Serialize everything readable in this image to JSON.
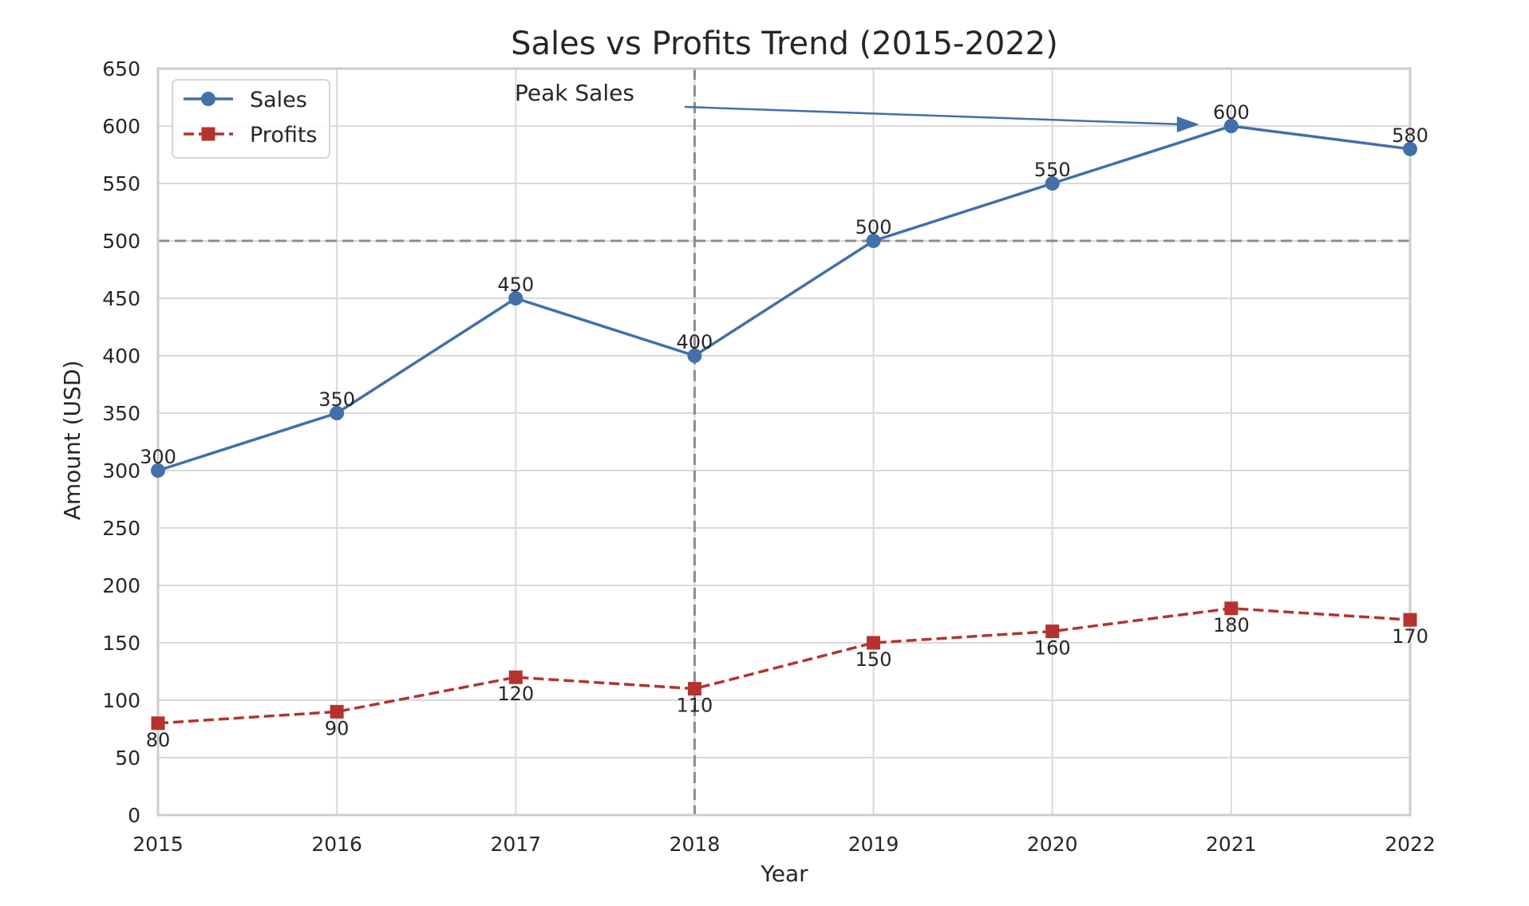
{
  "chart_data": {
    "type": "line",
    "title": "Sales vs Profits Trend (2015-2022)",
    "xlabel": "Year",
    "ylabel": "Amount (USD)",
    "x": [
      2015,
      2016,
      2017,
      2018,
      2019,
      2020,
      2021,
      2022
    ],
    "x_tick_labels": [
      "2015",
      "2016",
      "2017",
      "2018",
      "2019",
      "2020",
      "2021",
      "2022"
    ],
    "xlim": [
      2015,
      2022
    ],
    "ylim": [
      0,
      650
    ],
    "y_ticks": [
      0,
      50,
      100,
      150,
      200,
      250,
      300,
      350,
      400,
      450,
      500,
      550,
      600,
      650
    ],
    "y_tick_labels": [
      "0",
      "50",
      "100",
      "150",
      "200",
      "250",
      "300",
      "350",
      "400",
      "450",
      "500",
      "550",
      "600",
      "650"
    ],
    "grid": true,
    "series": [
      {
        "name": "Sales",
        "values": [
          300,
          350,
          450,
          400,
          500,
          550,
          600,
          580
        ],
        "labels": [
          "300",
          "350",
          "450",
          "400",
          "500",
          "550",
          "600",
          "580"
        ],
        "color": "#4170aa",
        "marker": "circle",
        "linestyle": "solid"
      },
      {
        "name": "Profits",
        "values": [
          80,
          90,
          120,
          110,
          150,
          160,
          180,
          170
        ],
        "labels": [
          "80",
          "90",
          "120",
          "110",
          "150",
          "160",
          "180",
          "170"
        ],
        "color": "#b5332e",
        "marker": "square",
        "linestyle": "dashed"
      }
    ],
    "reference_lines": {
      "horizontal_y": 500,
      "vertical_x": 2018,
      "color": "#8c8c8c"
    },
    "annotation": {
      "text": "Peak Sales",
      "target_x": 2021,
      "target_y": 600,
      "text_anchor_x": 2017.0,
      "text_anchor_y": 620,
      "color": "#4170aa"
    },
    "legend": {
      "placement": "top-left",
      "entries": [
        "Sales",
        "Profits"
      ]
    }
  }
}
